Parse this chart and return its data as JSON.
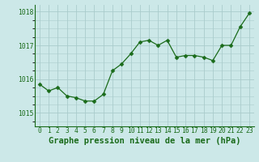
{
  "x": [
    0,
    1,
    2,
    3,
    4,
    5,
    6,
    7,
    8,
    9,
    10,
    11,
    12,
    13,
    14,
    15,
    16,
    17,
    18,
    19,
    20,
    21,
    22,
    23
  ],
  "y": [
    1015.85,
    1015.65,
    1015.75,
    1015.5,
    1015.45,
    1015.35,
    1015.35,
    1015.55,
    1016.25,
    1016.45,
    1016.75,
    1017.1,
    1017.15,
    1017.0,
    1017.15,
    1016.65,
    1016.7,
    1016.7,
    1016.65,
    1016.55,
    1017.0,
    1017.0,
    1017.55,
    1017.95
  ],
  "line_color": "#1a6b1a",
  "marker_color": "#1a6b1a",
  "bg_color": "#cce8e8",
  "grid_color": "#aacccc",
  "title": "Graphe pression niveau de la mer (hPa)",
  "ylabel_ticks": [
    1015,
    1016,
    1017,
    1018
  ],
  "ylim": [
    1014.6,
    1018.2
  ],
  "xlim": [
    -0.5,
    23.5
  ],
  "xlabel_ticks": [
    0,
    1,
    2,
    3,
    4,
    5,
    6,
    7,
    8,
    9,
    10,
    11,
    12,
    13,
    14,
    15,
    16,
    17,
    18,
    19,
    20,
    21,
    22,
    23
  ],
  "tick_label_color": "#1a6b1a",
  "title_color": "#1a6b1a",
  "title_fontsize": 7.5,
  "tick_fontsize": 5.8,
  "marker_size": 2.5,
  "linewidth": 0.9
}
